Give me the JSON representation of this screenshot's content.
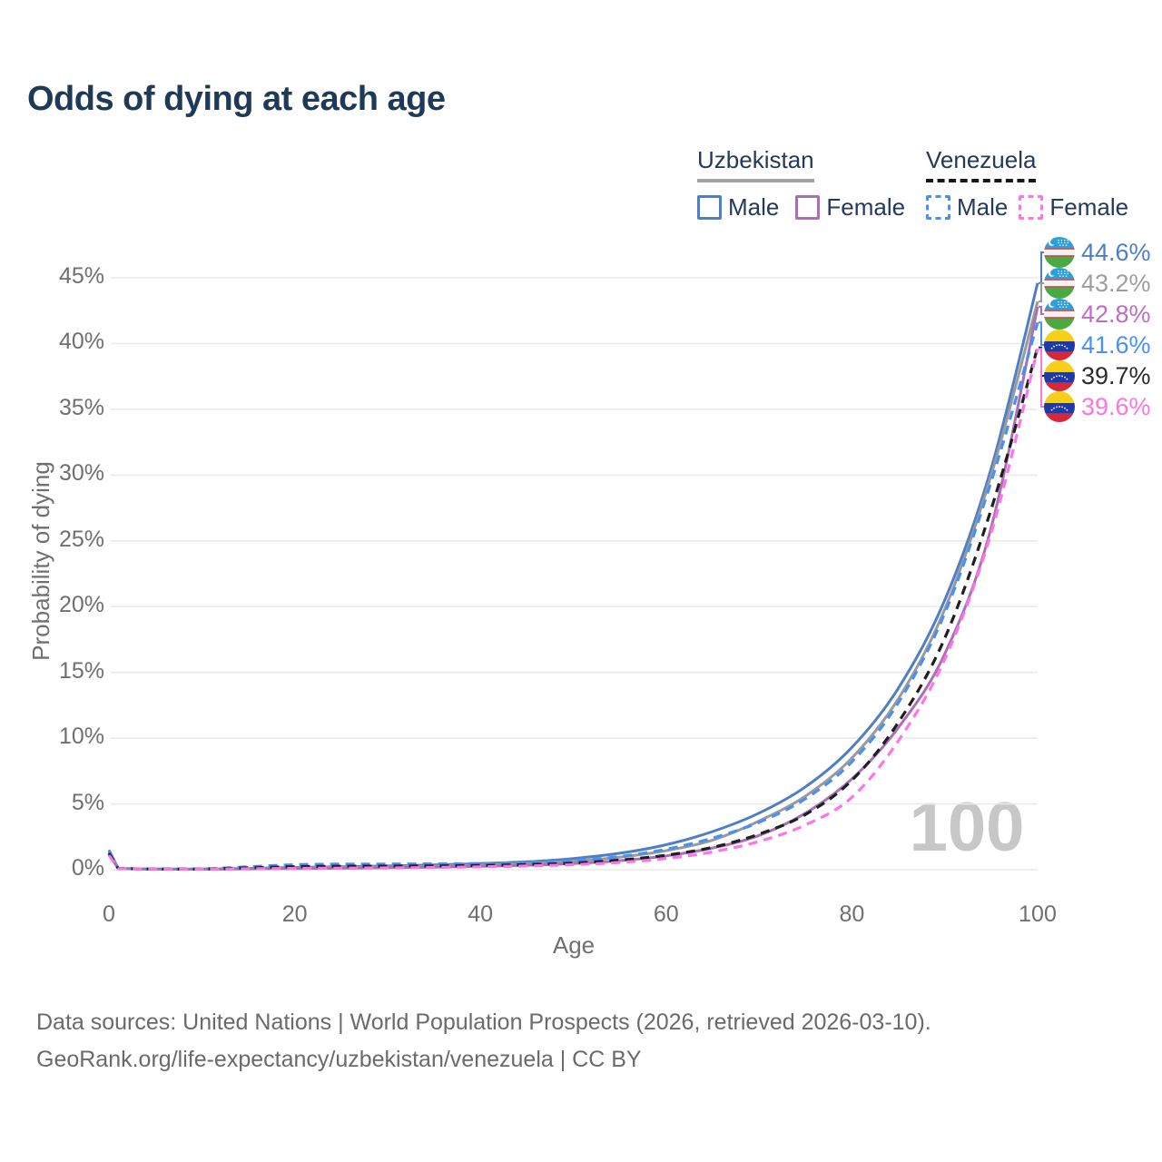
{
  "title": "Odds of dying at each age",
  "legend": {
    "groups": [
      {
        "name": "Uzbekistan",
        "line_style": "solid",
        "line_color": "#a3a3a3",
        "items": [
          {
            "label": "Male",
            "color": "#4e7fc4"
          },
          {
            "label": "Female",
            "color": "#a86fb5"
          }
        ]
      },
      {
        "name": "Venezuela",
        "line_style": "dashed",
        "line_color": "#161616",
        "items": [
          {
            "label": "Male",
            "color": "#4a90f2"
          },
          {
            "label": "Female",
            "color": "#fb74e8"
          }
        ]
      }
    ]
  },
  "chart_data": {
    "type": "line",
    "title": "Odds of dying at each age",
    "xlabel": "Age",
    "ylabel": "Probability of dying",
    "xlim": [
      0,
      100
    ],
    "ylim": [
      0,
      47
    ],
    "x_ticks": [
      0,
      20,
      40,
      60,
      80,
      100
    ],
    "y_ticks": [
      "0%",
      "5%",
      "10%",
      "15%",
      "20%",
      "25%",
      "30%",
      "35%",
      "40%",
      "45%"
    ],
    "grid": true,
    "legend_position": "top-right",
    "unit": "percent probability of dying at each age",
    "series": [
      {
        "id": "uzbekistan-male",
        "country": "Uzbekistan",
        "sex": "Male",
        "color": "#4e7fc4",
        "label_color": "#4e7fc4",
        "dashed": false,
        "flag": "uz",
        "end_label": "44.6%",
        "points": [
          [
            0,
            1.5
          ],
          [
            1,
            0.1
          ],
          [
            5,
            0.05
          ],
          [
            10,
            0.05
          ],
          [
            15,
            0.1
          ],
          [
            20,
            0.17
          ],
          [
            25,
            0.22
          ],
          [
            30,
            0.28
          ],
          [
            35,
            0.36
          ],
          [
            40,
            0.46
          ],
          [
            45,
            0.6
          ],
          [
            50,
            0.85
          ],
          [
            55,
            1.25
          ],
          [
            60,
            1.9
          ],
          [
            65,
            2.9
          ],
          [
            70,
            4.3
          ],
          [
            75,
            6.3
          ],
          [
            80,
            9.3
          ],
          [
            85,
            13.8
          ],
          [
            90,
            20.5
          ],
          [
            95,
            30.5
          ],
          [
            100,
            44.6
          ]
        ]
      },
      {
        "id": "uzbekistan-both",
        "country": "Uzbekistan",
        "sex": "Both",
        "color": "#9a9a9a",
        "label_color": "#9e9e9e",
        "dashed": false,
        "flag": "uz",
        "end_label": "43.2%",
        "points": [
          [
            0,
            1.35
          ],
          [
            1,
            0.09
          ],
          [
            5,
            0.05
          ],
          [
            10,
            0.05
          ],
          [
            15,
            0.08
          ],
          [
            20,
            0.13
          ],
          [
            25,
            0.17
          ],
          [
            30,
            0.21
          ],
          [
            35,
            0.27
          ],
          [
            40,
            0.35
          ],
          [
            45,
            0.46
          ],
          [
            50,
            0.65
          ],
          [
            55,
            0.95
          ],
          [
            60,
            1.45
          ],
          [
            65,
            2.25
          ],
          [
            70,
            3.7
          ],
          [
            75,
            5.6
          ],
          [
            80,
            8.5
          ],
          [
            85,
            13.0
          ],
          [
            90,
            19.8
          ],
          [
            95,
            30.0
          ],
          [
            100,
            43.2
          ]
        ]
      },
      {
        "id": "uzbekistan-female",
        "country": "Uzbekistan",
        "sex": "Female",
        "color": "#a86fb5",
        "label_color": "#bc6ec6",
        "dashed": false,
        "flag": "uz",
        "end_label": "42.8%",
        "points": [
          [
            0,
            1.2
          ],
          [
            1,
            0.08
          ],
          [
            5,
            0.04
          ],
          [
            10,
            0.04
          ],
          [
            15,
            0.06
          ],
          [
            20,
            0.09
          ],
          [
            25,
            0.11
          ],
          [
            30,
            0.15
          ],
          [
            35,
            0.19
          ],
          [
            40,
            0.26
          ],
          [
            45,
            0.34
          ],
          [
            50,
            0.47
          ],
          [
            55,
            0.68
          ],
          [
            60,
            1.05
          ],
          [
            65,
            1.65
          ],
          [
            70,
            2.6
          ],
          [
            75,
            4.3
          ],
          [
            80,
            6.9
          ],
          [
            85,
            10.8
          ],
          [
            90,
            16.4
          ],
          [
            95,
            26.0
          ],
          [
            100,
            42.8
          ]
        ]
      },
      {
        "id": "venezuela-male",
        "country": "Venezuela",
        "sex": "Male",
        "color": "#4a90f2",
        "label_color": "#4a90f2",
        "dashed": true,
        "flag": "ve",
        "end_label": "41.6%",
        "points": [
          [
            0,
            1.4
          ],
          [
            1,
            0.1
          ],
          [
            5,
            0.05
          ],
          [
            10,
            0.06
          ],
          [
            15,
            0.22
          ],
          [
            20,
            0.38
          ],
          [
            25,
            0.42
          ],
          [
            30,
            0.43
          ],
          [
            35,
            0.44
          ],
          [
            40,
            0.47
          ],
          [
            45,
            0.55
          ],
          [
            50,
            0.7
          ],
          [
            55,
            1.0
          ],
          [
            60,
            1.55
          ],
          [
            65,
            2.4
          ],
          [
            70,
            3.6
          ],
          [
            75,
            5.4
          ],
          [
            80,
            8.2
          ],
          [
            85,
            12.7
          ],
          [
            90,
            19.5
          ],
          [
            95,
            29.5
          ],
          [
            100,
            41.6
          ]
        ]
      },
      {
        "id": "venezuela-both",
        "country": "Venezuela",
        "sex": "Both",
        "color": "#1f1f1f",
        "label_color": "#2b2b2b",
        "dashed": true,
        "flag": "ve",
        "end_label": "39.7%",
        "points": [
          [
            0,
            1.25
          ],
          [
            1,
            0.09
          ],
          [
            5,
            0.05
          ],
          [
            10,
            0.05
          ],
          [
            15,
            0.14
          ],
          [
            20,
            0.23
          ],
          [
            25,
            0.26
          ],
          [
            30,
            0.27
          ],
          [
            35,
            0.29
          ],
          [
            40,
            0.32
          ],
          [
            45,
            0.39
          ],
          [
            50,
            0.5
          ],
          [
            55,
            0.73
          ],
          [
            60,
            1.1
          ],
          [
            65,
            1.7
          ],
          [
            70,
            2.7
          ],
          [
            75,
            4.2
          ],
          [
            80,
            6.8
          ],
          [
            85,
            11.2
          ],
          [
            90,
            17.6
          ],
          [
            95,
            27.4
          ],
          [
            100,
            39.7
          ]
        ]
      },
      {
        "id": "venezuela-female",
        "country": "Venezuela",
        "sex": "Female",
        "color": "#fb74e8",
        "label_color": "#fb74e8",
        "dashed": true,
        "flag": "ve",
        "end_label": "39.6%",
        "points": [
          [
            0,
            1.1
          ],
          [
            1,
            0.08
          ],
          [
            5,
            0.04
          ],
          [
            10,
            0.04
          ],
          [
            15,
            0.07
          ],
          [
            20,
            0.1
          ],
          [
            25,
            0.12
          ],
          [
            30,
            0.14
          ],
          [
            35,
            0.17
          ],
          [
            40,
            0.22
          ],
          [
            45,
            0.28
          ],
          [
            50,
            0.38
          ],
          [
            55,
            0.55
          ],
          [
            60,
            0.85
          ],
          [
            65,
            1.35
          ],
          [
            70,
            2.15
          ],
          [
            75,
            3.4
          ],
          [
            80,
            5.5
          ],
          [
            85,
            9.8
          ],
          [
            90,
            16.0
          ],
          [
            95,
            25.6
          ],
          [
            100,
            39.6
          ]
        ]
      }
    ]
  },
  "annotations": {
    "age_counter": "100"
  },
  "footer": {
    "line1": "Data sources: United Nations | World Population Prospects (2026, retrieved 2026-03-10).",
    "line2": "GeoRank.org/life-expectancy/uzbekistan/venezuela | CC BY"
  }
}
